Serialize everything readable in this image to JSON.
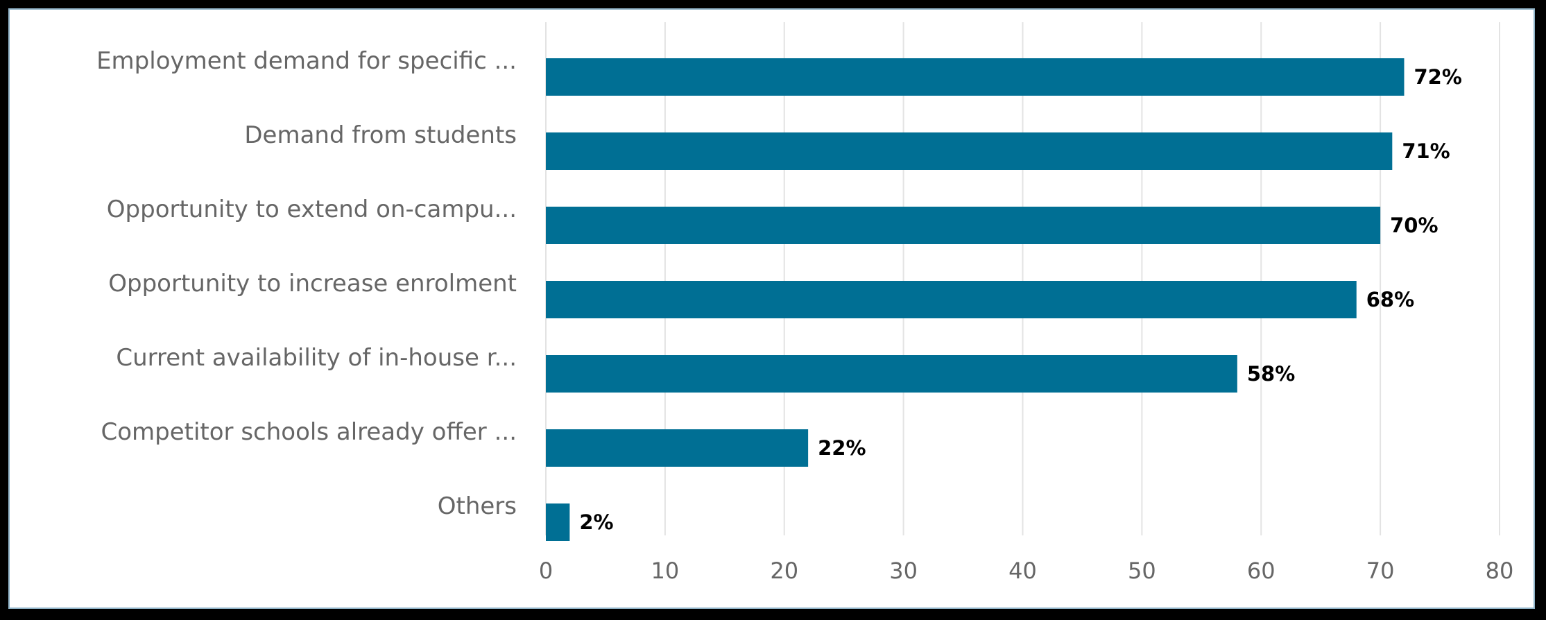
{
  "chart_data": {
    "type": "bar",
    "orientation": "horizontal",
    "categories": [
      "Employment demand for specific ...",
      "Demand from students",
      "Opportunity to extend on-campu...",
      "Opportunity to increase enrolment",
      "Current availability of in-house r...",
      "Competitor schools already offer ...",
      "Others"
    ],
    "values": [
      72,
      71,
      70,
      68,
      58,
      22,
      2
    ],
    "data_labels": [
      "72%",
      "71%",
      "70%",
      "68%",
      "58%",
      "22%",
      "2%"
    ],
    "xlim": [
      0,
      80
    ],
    "ticks": [
      0,
      10,
      20,
      30,
      40,
      50,
      60,
      70,
      80
    ],
    "tick_labels": [
      "0",
      "10",
      "20",
      "30",
      "40",
      "50",
      "60",
      "70",
      "80"
    ],
    "bar_color": "#006f94",
    "grid": true,
    "legend": "none"
  }
}
